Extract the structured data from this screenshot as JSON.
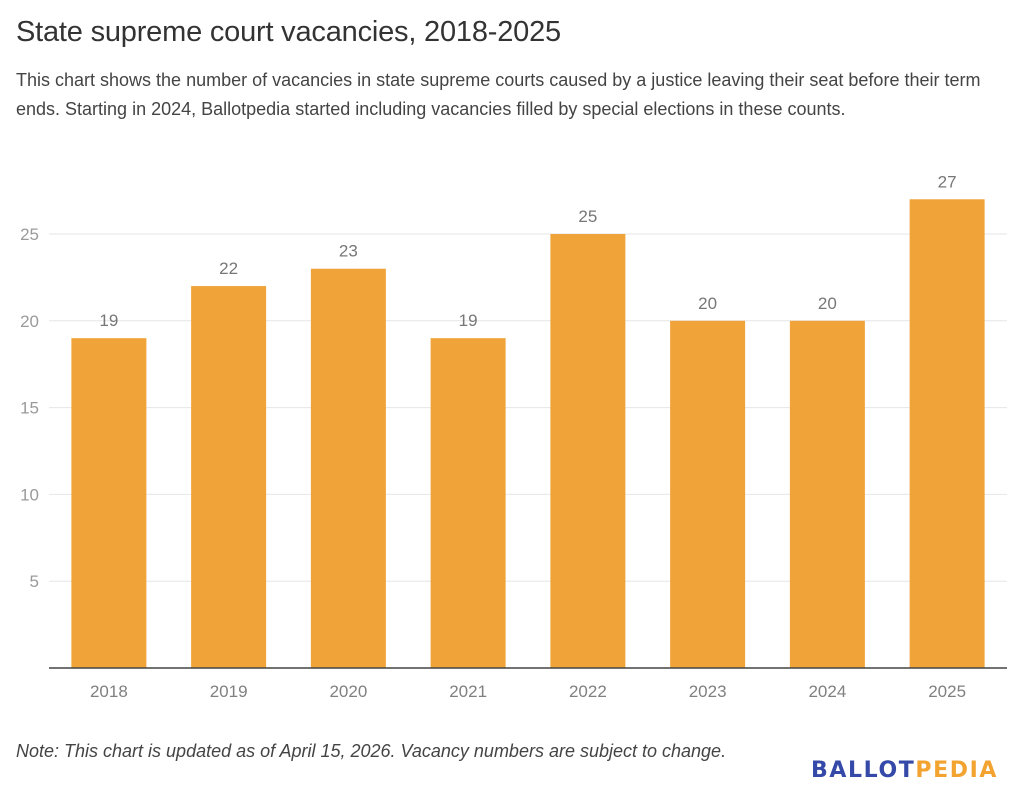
{
  "header": {
    "title": "State supreme court vacancies, 2018-2025",
    "subtitle": "This chart shows the number of vacancies in state supreme courts caused by a justice leaving their seat before their term ends. Starting in 2024, Ballotpedia started including vacancies filled by special elections in these counts."
  },
  "footer": {
    "note": "Note: This chart is updated as of April 15, 2026. Vacancy numbers are subject to change.",
    "logo_part1": "BALLOT",
    "logo_part2": "PEDIA"
  },
  "colors": {
    "bar": "#f0a339",
    "gridline": "#e6e6e6",
    "axis": "#444444",
    "logo_blue": "#3549a8",
    "logo_orange": "#f2a330"
  },
  "chart_data": {
    "type": "bar",
    "title": "State supreme court vacancies, 2018-2025",
    "xlabel": "",
    "ylabel": "",
    "categories": [
      "2018",
      "2019",
      "2020",
      "2021",
      "2022",
      "2023",
      "2024",
      "2025"
    ],
    "values": [
      19,
      22,
      23,
      19,
      25,
      20,
      20,
      27
    ],
    "ylim": [
      0,
      27
    ],
    "yticks": [
      5,
      10,
      15,
      20,
      25
    ],
    "grid": true,
    "data_labels": true,
    "legend": "none"
  }
}
